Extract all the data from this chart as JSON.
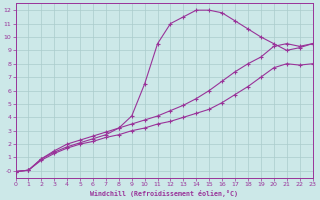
{
  "xlabel": "Windchill (Refroidissement éolien,°C)",
  "bg_color": "#cce8e8",
  "grid_color": "#aacccc",
  "line_color": "#993399",
  "xlim": [
    0,
    23
  ],
  "ylim": [
    -0.5,
    12.5
  ],
  "xticks": [
    0,
    1,
    2,
    3,
    4,
    5,
    6,
    7,
    8,
    9,
    10,
    11,
    12,
    13,
    14,
    15,
    16,
    17,
    18,
    19,
    20,
    21,
    22,
    23
  ],
  "yticks": [
    0,
    1,
    2,
    3,
    4,
    5,
    6,
    7,
    8,
    9,
    10,
    11,
    12
  ],
  "ytick_labels": [
    "-0",
    "1",
    "2",
    "3",
    "4",
    "5",
    "6",
    "7",
    "8",
    "9",
    "10",
    "11",
    "12"
  ],
  "curve_top_x": [
    0,
    1,
    2,
    3,
    4,
    5,
    6,
    7,
    8,
    9,
    10,
    11,
    12,
    13,
    14,
    15,
    16,
    17,
    18,
    19,
    20,
    21,
    22,
    23
  ],
  "curve_top_y": [
    -0.05,
    0.05,
    0.9,
    1.4,
    1.8,
    2.1,
    2.4,
    2.7,
    3.2,
    4.1,
    6.5,
    9.5,
    11.0,
    11.5,
    12.0,
    12.0,
    11.8,
    11.2,
    10.6,
    10.0,
    9.5,
    9.0,
    9.2,
    9.5
  ],
  "curve_mid_x": [
    0,
    1,
    2,
    3,
    4,
    5,
    6,
    7,
    8,
    9,
    10,
    11,
    12,
    13,
    14,
    15,
    16,
    17,
    18,
    19,
    20,
    21,
    22,
    23
  ],
  "curve_mid_y": [
    -0.05,
    0.05,
    0.9,
    1.5,
    2.0,
    2.3,
    2.6,
    2.9,
    3.2,
    3.5,
    3.8,
    4.1,
    4.5,
    4.9,
    5.4,
    6.0,
    6.7,
    7.4,
    8.0,
    8.5,
    9.3,
    9.5,
    9.3,
    9.5
  ],
  "curve_bot_x": [
    0,
    1,
    2,
    3,
    4,
    5,
    6,
    7,
    8,
    9,
    10,
    11,
    12,
    13,
    14,
    15,
    16,
    17,
    18,
    19,
    20,
    21,
    22,
    23
  ],
  "curve_bot_y": [
    -0.05,
    0.05,
    0.8,
    1.3,
    1.7,
    2.0,
    2.2,
    2.5,
    2.7,
    3.0,
    3.2,
    3.5,
    3.7,
    4.0,
    4.3,
    4.6,
    5.1,
    5.7,
    6.3,
    7.0,
    7.7,
    8.0,
    7.9,
    8.0
  ]
}
